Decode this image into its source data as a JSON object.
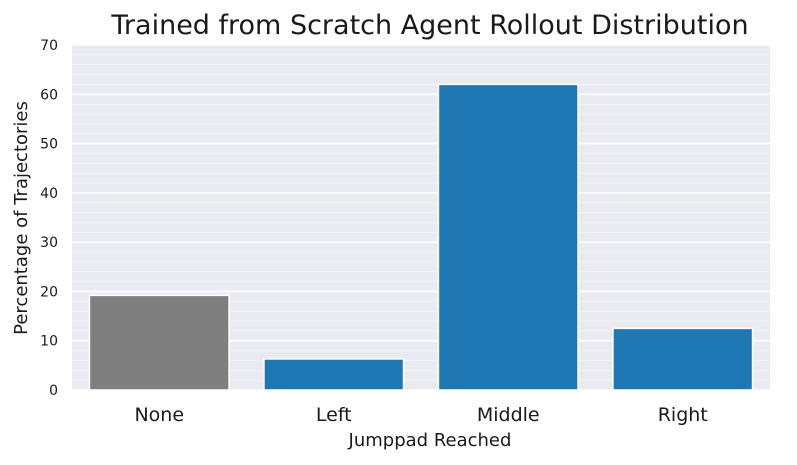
{
  "chart_data": {
    "type": "bar",
    "title": "Trained from Scratch Agent Rollout Distribution",
    "xlabel": "Jumppad Reached",
    "ylabel": "Percentage of Trajectories",
    "categories": [
      "None",
      "Left",
      "Middle",
      "Right"
    ],
    "values": [
      19.2,
      6.3,
      62.0,
      12.5
    ],
    "bar_colors": [
      "#7f7f7f",
      "#1f77b4",
      "#1f77b4",
      "#1f77b4"
    ],
    "ylim": [
      0,
      70
    ],
    "yticks": [
      0,
      10,
      20,
      30,
      40,
      50,
      60,
      70
    ],
    "minor_grid_step": 2,
    "grid": true,
    "background": "#eaeaf2"
  }
}
